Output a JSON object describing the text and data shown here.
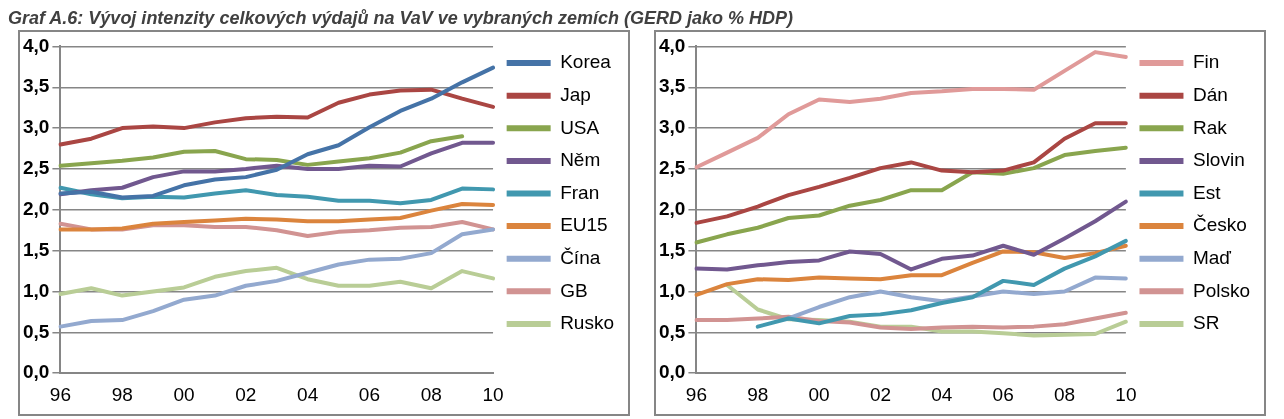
{
  "chart_data": [
    {
      "type": "line",
      "title": "Graf A.6: Vývoj intenzity celkových výdajů na VaV ve vybraných zemích (GERD jako % HDP)",
      "categories": [
        "96",
        null,
        "98",
        null,
        "00",
        null,
        "02",
        null,
        "04",
        null,
        "06",
        null,
        "08",
        null,
        "10"
      ],
      "ylim": [
        0,
        4
      ],
      "yticks": [
        {
          "value": 0,
          "label": "0,0"
        },
        {
          "value": 0.5,
          "label": "0,5"
        },
        {
          "value": 1,
          "label": "1,0"
        },
        {
          "value": 1.5,
          "label": "1,5"
        },
        {
          "value": 2,
          "label": "2,0"
        },
        {
          "value": 2.5,
          "label": "2,5"
        },
        {
          "value": 3,
          "label": "3,0"
        },
        {
          "value": 3.5,
          "label": "3,5"
        },
        {
          "value": 4,
          "label": "4,0"
        }
      ],
      "grid": "y",
      "legend": "right",
      "marker": "none",
      "line_style": "solid",
      "series": [
        {
          "name": "Korea",
          "color": "#4573a7",
          "values": [
            2.2,
            2.22,
            2.15,
            2.17,
            2.3,
            2.37,
            2.4,
            2.49,
            2.68,
            2.79,
            3.01,
            3.21,
            3.36,
            3.56,
            3.74
          ]
        },
        {
          "name": "Jap",
          "color": "#aa4643",
          "values": [
            2.8,
            2.87,
            3.0,
            3.02,
            3.0,
            3.07,
            3.12,
            3.14,
            3.13,
            3.31,
            3.41,
            3.46,
            3.47,
            3.36,
            3.26
          ]
        },
        {
          "name": "USA",
          "color": "#89a54e",
          "values": [
            2.54,
            2.57,
            2.6,
            2.64,
            2.71,
            2.72,
            2.62,
            2.61,
            2.55,
            2.59,
            2.63,
            2.7,
            2.84,
            2.9,
            null
          ]
        },
        {
          "name": "Něm",
          "color": "#71588f",
          "values": [
            2.19,
            2.24,
            2.27,
            2.4,
            2.47,
            2.47,
            2.5,
            2.54,
            2.5,
            2.5,
            2.54,
            2.53,
            2.69,
            2.82,
            2.82
          ]
        },
        {
          "name": "Fran",
          "color": "#4198af",
          "values": [
            2.27,
            2.19,
            2.14,
            2.16,
            2.15,
            2.2,
            2.24,
            2.18,
            2.16,
            2.11,
            2.11,
            2.08,
            2.12,
            2.26,
            2.25
          ]
        },
        {
          "name": "EU15",
          "color": "#db843d",
          "values": [
            1.76,
            1.76,
            1.77,
            1.83,
            1.85,
            1.87,
            1.89,
            1.88,
            1.86,
            1.86,
            1.88,
            1.9,
            1.99,
            2.07,
            2.06
          ]
        },
        {
          "name": "Čína",
          "color": "#93a9cf",
          "values": [
            0.57,
            0.64,
            0.65,
            0.76,
            0.9,
            0.95,
            1.07,
            1.13,
            1.23,
            1.33,
            1.39,
            1.4,
            1.47,
            1.7,
            1.76
          ]
        },
        {
          "name": "GB",
          "color": "#d19392",
          "values": [
            1.83,
            1.76,
            1.76,
            1.81,
            1.81,
            1.79,
            1.79,
            1.75,
            1.68,
            1.73,
            1.75,
            1.78,
            1.79,
            1.85,
            1.76
          ]
        },
        {
          "name": "Rusko",
          "color": "#b9cd96",
          "values": [
            0.97,
            1.04,
            0.95,
            1.0,
            1.05,
            1.18,
            1.25,
            1.29,
            1.15,
            1.07,
            1.07,
            1.12,
            1.04,
            1.25,
            1.16
          ]
        }
      ]
    },
    {
      "type": "line",
      "categories": [
        "96",
        null,
        "98",
        null,
        "00",
        null,
        "02",
        null,
        "04",
        null,
        "06",
        null,
        "08",
        null,
        "10"
      ],
      "ylim": [
        0,
        4
      ],
      "yticks": [
        {
          "value": 0,
          "label": "0,0"
        },
        {
          "value": 0.5,
          "label": "0,5"
        },
        {
          "value": 1,
          "label": "1,0"
        },
        {
          "value": 1.5,
          "label": "1,5"
        },
        {
          "value": 2,
          "label": "2,0"
        },
        {
          "value": 2.5,
          "label": "2,5"
        },
        {
          "value": 3,
          "label": "3,0"
        },
        {
          "value": 3.5,
          "label": "3,5"
        },
        {
          "value": 4,
          "label": "4,0"
        }
      ],
      "grid": "y",
      "legend": "right",
      "marker": "none",
      "line_style": "solid",
      "series": [
        {
          "name": "Fin",
          "color": "#e09a99",
          "values": [
            2.52,
            2.7,
            2.88,
            3.17,
            3.35,
            3.32,
            3.36,
            3.43,
            3.45,
            3.48,
            3.48,
            3.47,
            3.7,
            3.93,
            3.87
          ]
        },
        {
          "name": "Dán",
          "color": "#aa4643",
          "values": [
            1.84,
            1.92,
            2.04,
            2.18,
            2.28,
            2.39,
            2.51,
            2.58,
            2.48,
            2.46,
            2.48,
            2.58,
            2.87,
            3.06,
            3.06
          ]
        },
        {
          "name": "Rak",
          "color": "#89a54e",
          "values": [
            1.6,
            1.7,
            1.78,
            1.9,
            1.93,
            2.05,
            2.12,
            2.24,
            2.24,
            2.46,
            2.44,
            2.51,
            2.67,
            2.72,
            2.76
          ]
        },
        {
          "name": "Slovin",
          "color": "#71588f",
          "values": [
            1.28,
            1.27,
            1.32,
            1.36,
            1.38,
            1.49,
            1.46,
            1.27,
            1.4,
            1.44,
            1.56,
            1.45,
            1.65,
            1.86,
            2.1
          ]
        },
        {
          "name": "Est",
          "color": "#4198af",
          "values": [
            null,
            null,
            0.57,
            0.67,
            0.61,
            0.7,
            0.72,
            0.77,
            0.86,
            0.93,
            1.13,
            1.08,
            1.28,
            1.43,
            1.62
          ]
        },
        {
          "name": "Česko",
          "color": "#db843d",
          "values": [
            0.96,
            1.09,
            1.15,
            1.14,
            1.17,
            1.16,
            1.15,
            1.2,
            1.2,
            1.35,
            1.49,
            1.48,
            1.41,
            1.47,
            1.56
          ]
        },
        {
          "name": "Maď",
          "color": "#93a9cf",
          "values": [
            null,
            null,
            null,
            0.67,
            0.81,
            0.93,
            1.0,
            0.93,
            0.88,
            0.94,
            1.0,
            0.97,
            1.0,
            1.17,
            1.16
          ]
        },
        {
          "name": "Polsko",
          "color": "#d19392",
          "values": [
            0.65,
            0.65,
            0.67,
            0.69,
            0.64,
            0.62,
            0.56,
            0.54,
            0.56,
            0.57,
            0.56,
            0.57,
            0.6,
            0.67,
            0.74
          ]
        },
        {
          "name": "SR",
          "color": "#b9cd96",
          "values": [
            null,
            1.08,
            0.78,
            0.66,
            0.65,
            0.63,
            0.57,
            0.57,
            0.51,
            0.51,
            0.49,
            0.46,
            0.47,
            0.48,
            0.63
          ]
        }
      ]
    }
  ]
}
